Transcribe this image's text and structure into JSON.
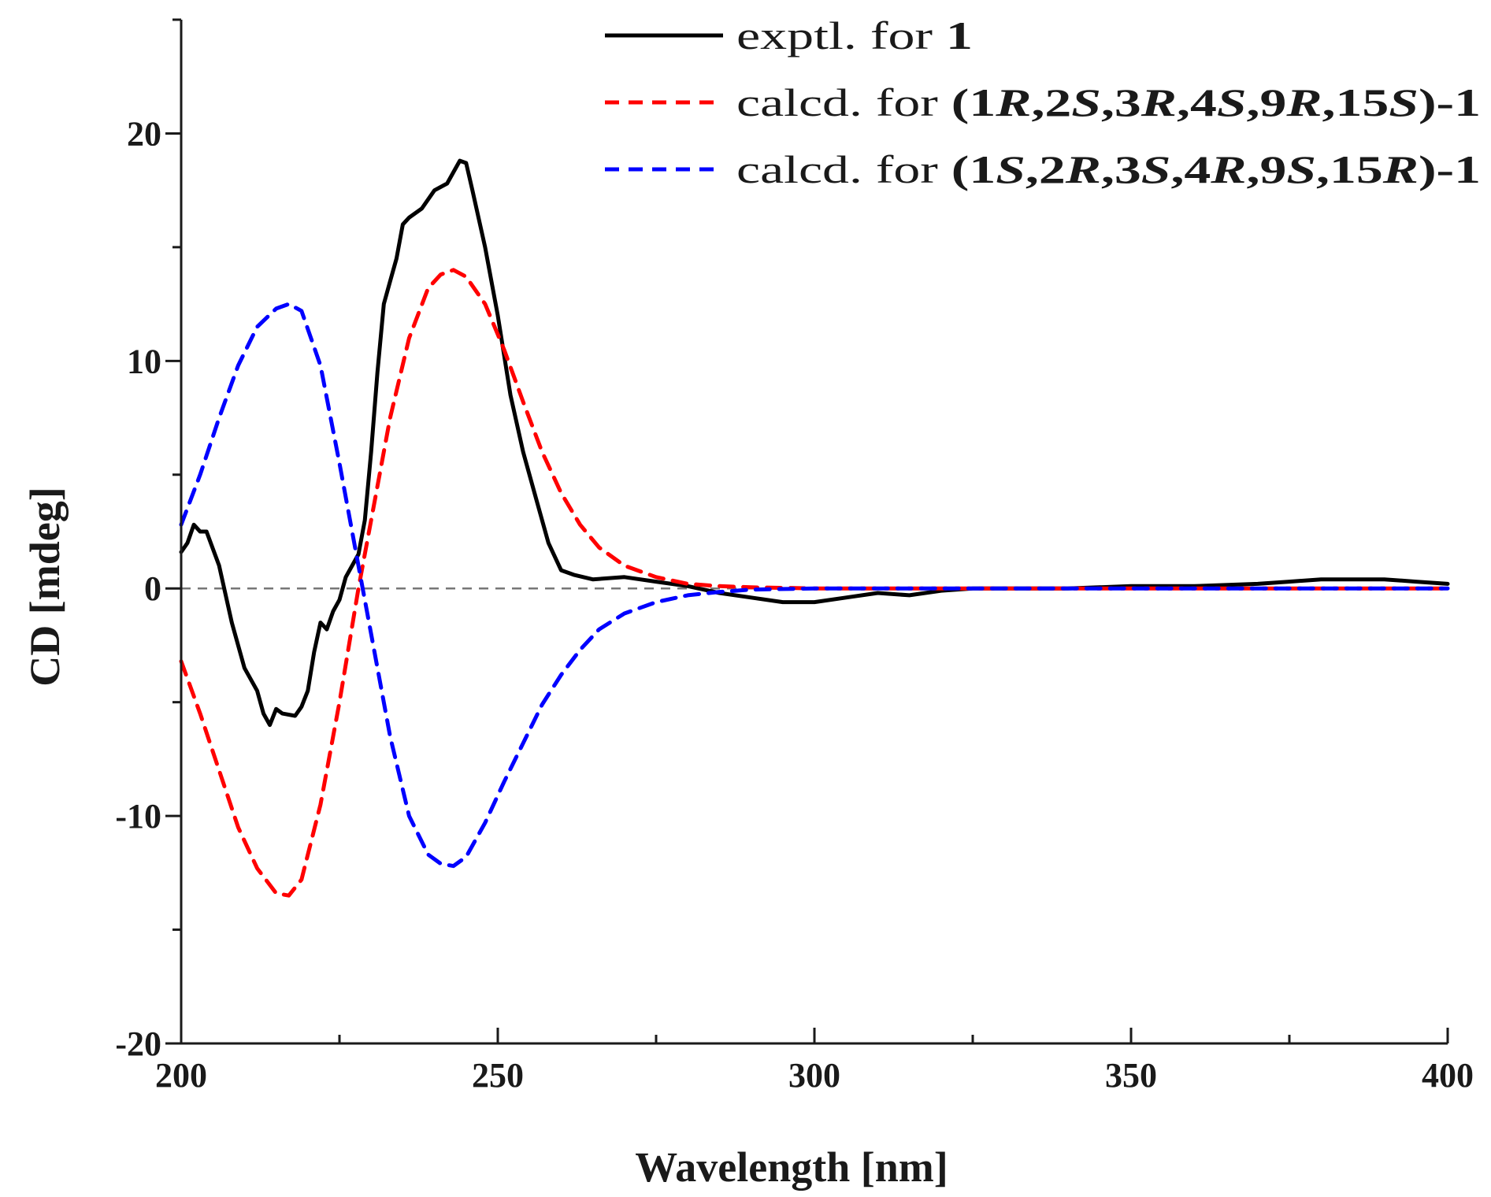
{
  "chart_data": {
    "type": "line",
    "xlabel": "Wavelength [nm]",
    "ylabel": "CD [mdeg]",
    "xlim": [
      200,
      400
    ],
    "ylim": [
      -20,
      25
    ],
    "x_ticks": [
      200,
      250,
      300,
      350,
      400
    ],
    "y_ticks": [
      -20,
      -10,
      0,
      10,
      20
    ],
    "legend_position": "top-right",
    "series": [
      {
        "name": "exptl. for 1",
        "legend_parts": [
          {
            "t": "exptl. for "
          },
          {
            "t": "1",
            "b": true
          }
        ],
        "color": "#000000",
        "style": "solid",
        "x": [
          200,
          201,
          202,
          203,
          204,
          206,
          208,
          210,
          212,
          213,
          214,
          215,
          216,
          218,
          219,
          220,
          221,
          222,
          223,
          224,
          225,
          226,
          228,
          229,
          230,
          231,
          232,
          233,
          234,
          235,
          236,
          238,
          240,
          242,
          243,
          244,
          245,
          246,
          248,
          250,
          252,
          254,
          256,
          258,
          260,
          262,
          265,
          270,
          275,
          280,
          285,
          290,
          295,
          300,
          305,
          310,
          315,
          320,
          325,
          330,
          340,
          350,
          360,
          370,
          375,
          380,
          385,
          390,
          395,
          400
        ],
        "y": [
          1.6,
          2.0,
          2.8,
          2.5,
          2.5,
          1.0,
          -1.5,
          -3.5,
          -4.5,
          -5.5,
          -6.0,
          -5.3,
          -5.5,
          -5.6,
          -5.2,
          -4.5,
          -2.8,
          -1.5,
          -1.8,
          -1.0,
          -0.5,
          0.5,
          1.5,
          3.0,
          6.0,
          9.5,
          12.5,
          13.5,
          14.5,
          16.0,
          16.3,
          16.7,
          17.5,
          17.8,
          18.3,
          18.8,
          18.7,
          17.5,
          15.0,
          12.0,
          8.5,
          6.0,
          4.0,
          2.0,
          0.8,
          0.6,
          0.4,
          0.5,
          0.3,
          0.1,
          -0.2,
          -0.4,
          -0.6,
          -0.6,
          -0.4,
          -0.2,
          -0.3,
          -0.1,
          0.0,
          0.0,
          0.0,
          0.1,
          0.1,
          0.2,
          0.3,
          0.4,
          0.4,
          0.4,
          0.3,
          0.2
        ]
      },
      {
        "name": "calcd. for (1R,2S,3R,4S,9R,15S)-1",
        "legend_parts": [
          {
            "t": "calcd. for "
          },
          {
            "t": "(1",
            "b": true
          },
          {
            "t": "R",
            "b": true,
            "i": true
          },
          {
            "t": ",2",
            "b": true
          },
          {
            "t": "S",
            "b": true,
            "i": true
          },
          {
            "t": ",3",
            "b": true
          },
          {
            "t": "R",
            "b": true,
            "i": true
          },
          {
            "t": ",4",
            "b": true
          },
          {
            "t": "S",
            "b": true,
            "i": true
          },
          {
            "t": ",9",
            "b": true
          },
          {
            "t": "R",
            "b": true,
            "i": true
          },
          {
            "t": ",15",
            "b": true
          },
          {
            "t": "S",
            "b": true,
            "i": true
          },
          {
            "t": ")-1",
            "b": true
          }
        ],
        "color": "#ff0000",
        "style": "dashed",
        "x": [
          200,
          203,
          206,
          209,
          212,
          215,
          217,
          219,
          222,
          225,
          228,
          230,
          233,
          236,
          239,
          241,
          243,
          245,
          248,
          251,
          254,
          257,
          260,
          263,
          266,
          270,
          275,
          280,
          285,
          290,
          300,
          320,
          350,
          400
        ],
        "y": [
          -3.2,
          -5.5,
          -8.0,
          -10.5,
          -12.3,
          -13.4,
          -13.5,
          -12.8,
          -9.5,
          -5.0,
          0.0,
          3.0,
          7.5,
          11.0,
          13.2,
          13.8,
          14.0,
          13.7,
          12.5,
          10.5,
          8.2,
          6.0,
          4.2,
          2.8,
          1.8,
          1.0,
          0.5,
          0.2,
          0.1,
          0.05,
          0.0,
          0.0,
          0.0,
          0.0
        ]
      },
      {
        "name": "calcd. for (1S,2R,3S,4R,9S,15R)-1",
        "legend_parts": [
          {
            "t": "calcd. for "
          },
          {
            "t": "(1",
            "b": true
          },
          {
            "t": "S",
            "b": true,
            "i": true
          },
          {
            "t": ",2",
            "b": true
          },
          {
            "t": "R",
            "b": true,
            "i": true
          },
          {
            "t": ",3",
            "b": true
          },
          {
            "t": "S",
            "b": true,
            "i": true
          },
          {
            "t": ",4",
            "b": true
          },
          {
            "t": "R",
            "b": true,
            "i": true
          },
          {
            "t": ",9",
            "b": true
          },
          {
            "t": "S",
            "b": true,
            "i": true
          },
          {
            "t": ",15",
            "b": true
          },
          {
            "t": "R",
            "b": true,
            "i": true
          },
          {
            "t": ")-1",
            "b": true
          }
        ],
        "color": "#0000ff",
        "style": "dashed",
        "x": [
          200,
          203,
          206,
          209,
          212,
          215,
          217,
          219,
          222,
          225,
          228,
          230,
          233,
          236,
          239,
          241,
          243,
          245,
          248,
          251,
          254,
          257,
          260,
          263,
          266,
          270,
          275,
          280,
          285,
          290,
          300,
          320,
          350,
          400
        ],
        "y": [
          2.8,
          5.0,
          7.5,
          9.8,
          11.5,
          12.3,
          12.5,
          12.2,
          9.8,
          5.5,
          1.0,
          -2.0,
          -6.5,
          -10.0,
          -11.7,
          -12.1,
          -12.2,
          -11.8,
          -10.3,
          -8.5,
          -6.8,
          -5.1,
          -3.8,
          -2.7,
          -1.8,
          -1.1,
          -0.6,
          -0.3,
          -0.15,
          -0.05,
          0.0,
          0.0,
          0.0,
          0.0
        ]
      }
    ]
  }
}
